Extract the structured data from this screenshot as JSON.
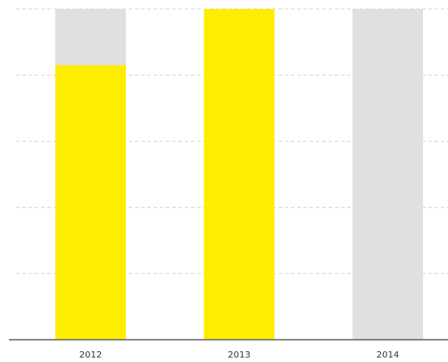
{
  "chart_data": {
    "type": "stacked_bar",
    "categories": [
      "2012",
      "2013",
      "2014"
    ],
    "series": [
      {
        "color": "#ffed00",
        "values": [
          83,
          100,
          0
        ]
      },
      {
        "color": "#e0e0e0",
        "values": [
          17,
          0,
          100
        ]
      }
    ],
    "ylim": [
      0,
      100
    ],
    "yticks": [
      0,
      20,
      40,
      60,
      80,
      100
    ],
    "grid": true
  }
}
